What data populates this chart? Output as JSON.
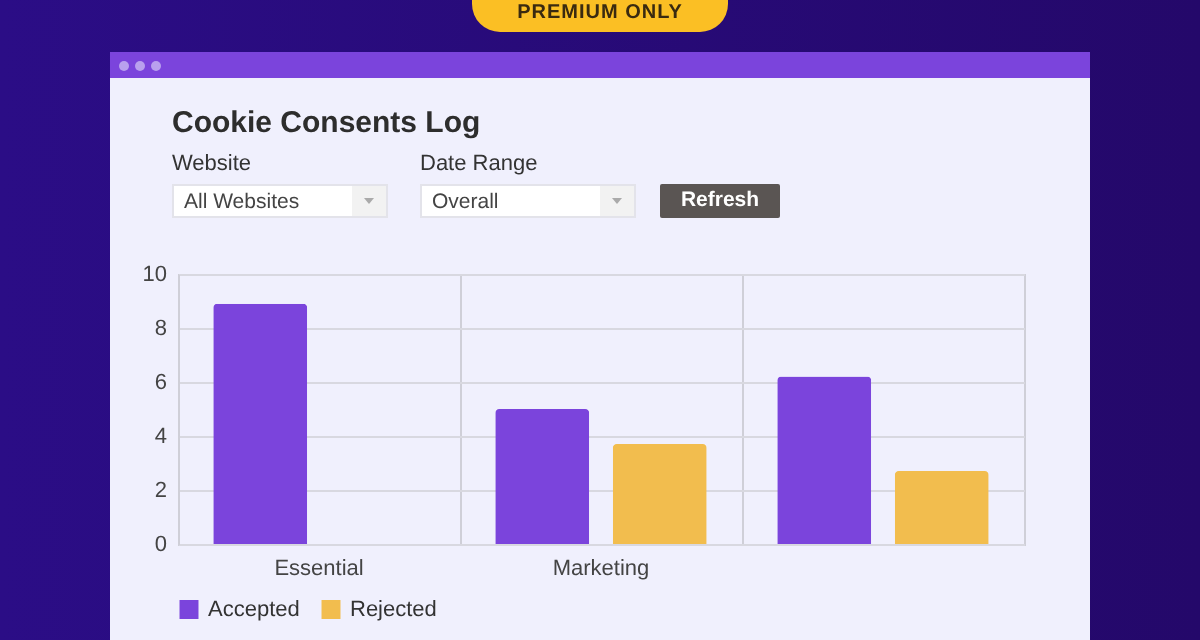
{
  "chart_data": {
    "type": "bar",
    "title": "Cookie Consents Log",
    "annotations": [
      "PREMIUM ONLY",
      "Website",
      "All Websites",
      "Date Range",
      "Overall",
      "Refresh"
    ],
    "categories": [
      "Essential",
      "Marketing",
      null
    ],
    "series": [
      {
        "name": "Accepted",
        "color": "#7b44dc",
        "values": [
          8.9,
          5.0,
          6.2
        ]
      },
      {
        "name": "Rejected",
        "color": "#f2bd4e",
        "values": [
          0,
          3.7,
          2.7
        ]
      }
    ],
    "ylim": [
      0,
      10
    ],
    "yticks": [
      0,
      2,
      4,
      6,
      8,
      10
    ],
    "grid": true,
    "legend": "bottom"
  }
}
